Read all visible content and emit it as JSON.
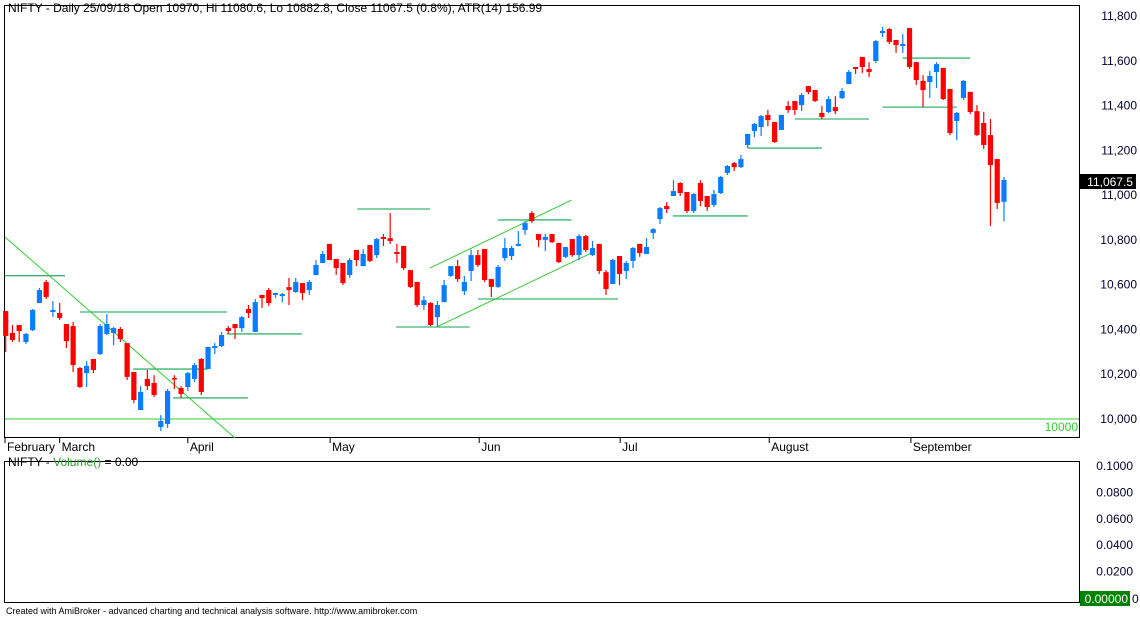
{
  "title": {
    "symbol_interval": "NIFTY - Daily 25/09/18 Open 10970, Hi 11080.6, Lo 10882.8, Close 11067.5 (0.8%), ATR(14) 156.99"
  },
  "volume_pane": {
    "prefix": "NIFTY - ",
    "indicator": "Volume()",
    "suffix": " = 0.00",
    "ticks": [
      "0.1000",
      "0.0800",
      "0.0600",
      "0.0400",
      "0.0200"
    ],
    "ticks_values": [
      0.1,
      0.08,
      0.06,
      0.04,
      0.02
    ],
    "last_value": "0.00000",
    "last_value_suffix": "0"
  },
  "footer": "Created with AmiBroker - advanced charting and technical analysis software. http://www.amibroker.com",
  "colors": {
    "up": "#0a7cff",
    "down": "#ff0000",
    "hline": "#3cb371",
    "trend": "#33cc33",
    "last_bg": "#000000",
    "vol_bg": "#008000"
  },
  "chart_data": {
    "type": "candlestick",
    "title": "NIFTY - Daily",
    "ylim": [
      9920,
      11880
    ],
    "y_ticks": [
      10000,
      10200,
      10400,
      10600,
      10800,
      11000,
      11200,
      11400,
      11600,
      11800
    ],
    "y_tick_labels": [
      "10,000",
      "10,200",
      "10,400",
      "10,600",
      "10,800",
      "11,000",
      "11,200",
      "11,400",
      "11,600",
      "11,800"
    ],
    "last_price_label": "11,067.5",
    "last_price": 11067.5,
    "level_label": "10000",
    "months": [
      {
        "label": "February",
        "index": -0.2
      },
      {
        "label": "March",
        "index": 8.0
      },
      {
        "label": "April",
        "index": 27.0
      },
      {
        "label": "May",
        "index": 48.1
      },
      {
        "label": "Jun",
        "index": 70.2
      },
      {
        "label": "Jul",
        "index": 91.1
      },
      {
        "label": "August",
        "index": 113.2
      },
      {
        "label": "September",
        "index": 134.2
      }
    ],
    "candles_ohlc": [
      [
        10482,
        10482,
        10299,
        10371
      ],
      [
        10384,
        10420,
        10344,
        10353
      ],
      [
        10420,
        10420,
        10344,
        10393
      ],
      [
        10344,
        10384,
        10335,
        10380
      ],
      [
        10397,
        10491,
        10393,
        10487
      ],
      [
        10518,
        10585,
        10518,
        10576
      ],
      [
        10612,
        10621,
        10536,
        10545
      ],
      [
        10478,
        10527,
        10456,
        10487
      ],
      [
        10473,
        10518,
        10442,
        10451
      ],
      [
        10424,
        10424,
        10317,
        10348
      ],
      [
        10415,
        10433,
        10210,
        10241
      ],
      [
        10228,
        10232,
        10138,
        10143
      ],
      [
        10205,
        10259,
        10143,
        10237
      ],
      [
        10268,
        10268,
        10205,
        10219
      ],
      [
        10290,
        10424,
        10286,
        10415
      ],
      [
        10380,
        10469,
        10375,
        10424
      ],
      [
        10384,
        10411,
        10330,
        10406
      ],
      [
        10402,
        10411,
        10344,
        10357
      ],
      [
        10339,
        10339,
        10174,
        10188
      ],
      [
        10210,
        10210,
        10071,
        10085
      ],
      [
        10040,
        10147,
        10040,
        10121
      ],
      [
        10179,
        10219,
        10130,
        10147
      ],
      [
        10161,
        10196,
        10098,
        10107
      ],
      [
        9964,
        10018,
        9946,
        9991
      ],
      [
        9978,
        10134,
        9960,
        10125
      ],
      [
        10183,
        10196,
        10134,
        10179
      ],
      [
        10138,
        10147,
        10094,
        10112
      ],
      [
        10143,
        10210,
        10125,
        10205
      ],
      [
        10179,
        10250,
        10165,
        10241
      ],
      [
        10268,
        10272,
        10107,
        10121
      ],
      [
        10223,
        10322,
        10223,
        10322
      ],
      [
        10317,
        10339,
        10290,
        10326
      ],
      [
        10326,
        10389,
        10322,
        10375
      ],
      [
        10406,
        10415,
        10380,
        10393
      ],
      [
        10424,
        10424,
        10357,
        10406
      ],
      [
        10406,
        10460,
        10389,
        10455
      ],
      [
        10491,
        10509,
        10451,
        10473
      ],
      [
        10389,
        10536,
        10389,
        10522
      ],
      [
        10554,
        10554,
        10496,
        10540
      ],
      [
        10576,
        10585,
        10505,
        10518
      ],
      [
        10554,
        10563,
        10540,
        10563
      ],
      [
        10549,
        10563,
        10522,
        10558
      ],
      [
        10589,
        10630,
        10509,
        10576
      ],
      [
        10567,
        10630,
        10563,
        10612
      ],
      [
        10607,
        10607,
        10531,
        10563
      ],
      [
        10576,
        10621,
        10554,
        10612
      ],
      [
        10643,
        10710,
        10643,
        10688
      ],
      [
        10697,
        10750,
        10697,
        10737
      ],
      [
        10782,
        10782,
        10710,
        10710
      ],
      [
        10715,
        10715,
        10643,
        10674
      ],
      [
        10697,
        10697,
        10598,
        10607
      ],
      [
        10643,
        10719,
        10630,
        10710
      ],
      [
        10755,
        10755,
        10683,
        10710
      ],
      [
        10683,
        10759,
        10683,
        10737
      ],
      [
        10777,
        10777,
        10701,
        10706
      ],
      [
        10732,
        10808,
        10719,
        10804
      ],
      [
        10813,
        10826,
        10773,
        10804
      ],
      [
        10808,
        10920,
        10782,
        10795
      ],
      [
        10746,
        10782,
        10697,
        10737
      ],
      [
        10773,
        10773,
        10665,
        10674
      ],
      [
        10665,
        10665,
        10585,
        10590
      ],
      [
        10612,
        10612,
        10500,
        10509
      ],
      [
        10509,
        10549,
        10487,
        10531
      ],
      [
        10518,
        10522,
        10415,
        10420
      ],
      [
        10455,
        10527,
        10411,
        10509
      ],
      [
        10522,
        10621,
        10522,
        10598
      ],
      [
        10639,
        10683,
        10634,
        10683
      ],
      [
        10683,
        10710,
        10612,
        10625
      ],
      [
        10571,
        10639,
        10554,
        10612
      ],
      [
        10661,
        10755,
        10616,
        10732
      ],
      [
        10732,
        10755,
        10679,
        10688
      ],
      [
        10759,
        10759,
        10612,
        10621
      ],
      [
        10625,
        10625,
        10545,
        10590
      ],
      [
        10590,
        10688,
        10585,
        10679
      ],
      [
        10719,
        10808,
        10706,
        10764
      ],
      [
        10728,
        10773,
        10710,
        10764
      ],
      [
        10773,
        10840,
        10773,
        10782
      ],
      [
        10844,
        10884,
        10822,
        10875
      ],
      [
        10920,
        10929,
        10875,
        10884
      ],
      [
        10826,
        10826,
        10768,
        10800
      ],
      [
        10800,
        10826,
        10750,
        10813
      ],
      [
        10826,
        10826,
        10786,
        10790
      ],
      [
        10786,
        10786,
        10697,
        10701
      ],
      [
        10724,
        10768,
        10719,
        10768
      ],
      [
        10804,
        10804,
        10724,
        10732
      ],
      [
        10732,
        10826,
        10710,
        10817
      ],
      [
        10817,
        10822,
        10746,
        10755
      ],
      [
        10732,
        10795,
        10728,
        10764
      ],
      [
        10782,
        10782,
        10648,
        10661
      ],
      [
        10656,
        10665,
        10554,
        10580
      ],
      [
        10603,
        10715,
        10603,
        10710
      ],
      [
        10728,
        10728,
        10598,
        10648
      ],
      [
        10661,
        10706,
        10625,
        10697
      ],
      [
        10706,
        10768,
        10674,
        10764
      ],
      [
        10782,
        10782,
        10724,
        10741
      ],
      [
        10737,
        10808,
        10737,
        10768
      ],
      [
        10831,
        10853,
        10804,
        10848
      ],
      [
        10893,
        10947,
        10871,
        10942
      ],
      [
        10951,
        10969,
        10920,
        10938
      ],
      [
        10996,
        11067,
        10996,
        11018
      ],
      [
        11054,
        11058,
        10996,
        11009
      ],
      [
        11014,
        11014,
        10920,
        10929
      ],
      [
        10929,
        11009,
        10920,
        11005
      ],
      [
        11054,
        11067,
        10951,
        10974
      ],
      [
        10996,
        10996,
        10929,
        10947
      ],
      [
        10956,
        11023,
        10947,
        11005
      ],
      [
        11009,
        11085,
        11005,
        11081
      ],
      [
        11099,
        11134,
        11090,
        11130
      ],
      [
        11143,
        11148,
        11107,
        11125
      ],
      [
        11125,
        11179,
        11121,
        11161
      ],
      [
        11224,
        11273,
        11210,
        11273
      ],
      [
        11286,
        11322,
        11259,
        11318
      ],
      [
        11304,
        11358,
        11264,
        11353
      ],
      [
        11358,
        11380,
        11308,
        11335
      ],
      [
        11326,
        11326,
        11233,
        11237
      ],
      [
        11291,
        11358,
        11291,
        11358
      ],
      [
        11398,
        11420,
        11367,
        11380
      ],
      [
        11420,
        11420,
        11358,
        11380
      ],
      [
        11402,
        11456,
        11375,
        11447
      ],
      [
        11487,
        11487,
        11451,
        11460
      ],
      [
        11469,
        11469,
        11416,
        11420
      ],
      [
        11367,
        11398,
        11340,
        11349
      ],
      [
        11371,
        11442,
        11367,
        11429
      ],
      [
        11393,
        11442,
        11362,
        11375
      ],
      [
        11433,
        11478,
        11429,
        11465
      ],
      [
        11496,
        11559,
        11496,
        11550
      ],
      [
        11572,
        11572,
        11541,
        11563
      ],
      [
        11617,
        11617,
        11545,
        11572
      ],
      [
        11563,
        11594,
        11527,
        11550
      ],
      [
        11599,
        11693,
        11590,
        11688
      ],
      [
        11724,
        11751,
        11706,
        11733
      ],
      [
        11742,
        11746,
        11675,
        11684
      ],
      [
        11693,
        11693,
        11635,
        11670
      ],
      [
        11666,
        11719,
        11635,
        11675
      ],
      [
        11746,
        11746,
        11563,
        11572
      ],
      [
        11594,
        11594,
        11492,
        11514
      ],
      [
        11510,
        11536,
        11393,
        11469
      ],
      [
        11505,
        11554,
        11434,
        11532
      ],
      [
        11550,
        11594,
        11478,
        11585
      ],
      [
        11568,
        11568,
        11425,
        11429
      ],
      [
        11474,
        11474,
        11268,
        11277
      ],
      [
        11331,
        11371,
        11246,
        11367
      ],
      [
        11434,
        11514,
        11425,
        11510
      ],
      [
        11461,
        11461,
        11362,
        11371
      ],
      [
        11375,
        11402,
        11264,
        11268
      ],
      [
        11322,
        11371,
        11206,
        11224
      ],
      [
        11268,
        11340,
        10862,
        11134
      ],
      [
        11161,
        11161,
        10938,
        10965
      ],
      [
        10970,
        11080.6,
        10882.8,
        11067.5
      ]
    ],
    "hlines": [
      {
        "i1": -0.1,
        "i2": 8.8,
        "price": 10640
      },
      {
        "i1": 11,
        "i2": 32.8,
        "price": 10478
      },
      {
        "i1": 18.9,
        "i2": 29.9,
        "price": 10223
      },
      {
        "i1": 24.8,
        "i2": 35.9,
        "price": 10094
      },
      {
        "i1": 32.8,
        "i2": 43.9,
        "price": 10380
      },
      {
        "i1": 52.1,
        "i2": 62.9,
        "price": 10938
      },
      {
        "i1": 57.9,
        "i2": 68.8,
        "price": 10411
      },
      {
        "i1": 73,
        "i2": 83.9,
        "price": 10889
      },
      {
        "i1": 70,
        "i2": 90.8,
        "price": 10536
      },
      {
        "i1": 98.9,
        "i2": 110,
        "price": 10907
      },
      {
        "i1": 110,
        "i2": 121,
        "price": 11210
      },
      {
        "i1": 117,
        "i2": 128,
        "price": 11340
      },
      {
        "i1": 133,
        "i2": 143,
        "price": 11612
      },
      {
        "i1": 130,
        "i2": 141,
        "price": 11393
      }
    ],
    "level_line": 10000,
    "trendlines": [
      {
        "i1": -0.1,
        "p1": 10813,
        "i2": 34,
        "p2": 9915
      },
      {
        "i1": 62.9,
        "p1": 10674,
        "i2": 83.9,
        "p2": 10978
      },
      {
        "i1": 63.9,
        "p1": 10411,
        "i2": 86.8,
        "p2": 10741
      }
    ]
  }
}
